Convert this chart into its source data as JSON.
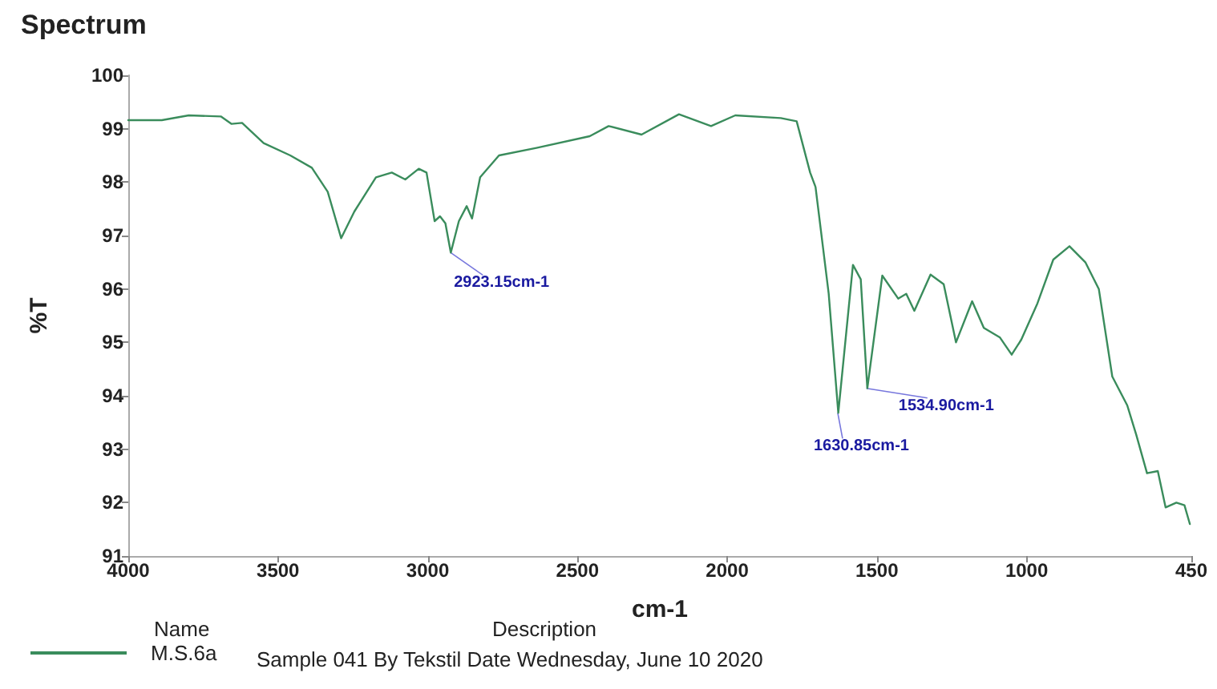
{
  "chart_data": {
    "type": "line",
    "title": "Spectrum",
    "xlabel": "cm-1",
    "ylabel": "%T",
    "xlim": [
      4000,
      450
    ],
    "xticks": [
      4000,
      3500,
      3000,
      2500,
      2000,
      1500,
      1000,
      450
    ],
    "ylim": [
      91,
      100
    ],
    "yticks": [
      91,
      92,
      93,
      94,
      95,
      96,
      97,
      98,
      99,
      100
    ],
    "grid": false,
    "legend": "bottom left",
    "marker": "none",
    "line_style": "solid",
    "series": [
      {
        "name": "M.S.6a",
        "color": "#3a8c5c",
        "x": [
          4000,
          3888,
          3798,
          3691,
          3655,
          3620,
          3548,
          3459,
          3387,
          3334,
          3289,
          3245,
          3173,
          3120,
          3075,
          3030,
          3004,
          2977,
          2959,
          2941,
          2923,
          2896,
          2870,
          2852,
          2825,
          2762,
          2637,
          2459,
          2396,
          2286,
          2161,
          2054,
          1973,
          1821,
          1768,
          1723,
          1705,
          1661,
          1629,
          1580,
          1554,
          1532,
          1482,
          1429,
          1402,
          1375,
          1321,
          1277,
          1236,
          1182,
          1143,
          1089,
          1050,
          1018,
          964,
          911,
          857,
          804,
          759,
          714,
          664,
          634,
          598,
          562,
          536,
          500,
          473,
          455
        ],
        "values": [
          99.16,
          99.16,
          99.25,
          99.23,
          99.09,
          99.11,
          98.73,
          98.5,
          98.27,
          97.82,
          96.95,
          97.45,
          98.09,
          98.18,
          98.05,
          98.25,
          98.18,
          97.27,
          97.36,
          97.23,
          96.68,
          97.27,
          97.55,
          97.32,
          98.09,
          98.5,
          98.64,
          98.86,
          99.05,
          98.89,
          99.27,
          99.05,
          99.25,
          99.2,
          99.14,
          98.18,
          97.91,
          95.91,
          93.68,
          96.45,
          96.18,
          94.14,
          96.25,
          95.82,
          95.91,
          95.59,
          96.27,
          96.09,
          95.0,
          95.77,
          95.27,
          95.09,
          94.77,
          95.05,
          95.73,
          96.55,
          96.8,
          96.5,
          96.0,
          94.36,
          93.82,
          93.27,
          92.55,
          92.59,
          91.91,
          92.0,
          91.95,
          91.6
        ]
      }
    ],
    "annotations": [
      {
        "text": "2923.15cm-1",
        "x": 2923.15,
        "y": 96.68
      },
      {
        "text": "1630.85cm-1",
        "x": 1630.85,
        "y": 93.68
      },
      {
        "text": "1534.90cm-1",
        "x": 1534.9,
        "y": 94.14
      },
      "Name",
      "Description",
      "Sample 041 By Tekstil Date Wednesday, June 10 2020"
    ]
  }
}
